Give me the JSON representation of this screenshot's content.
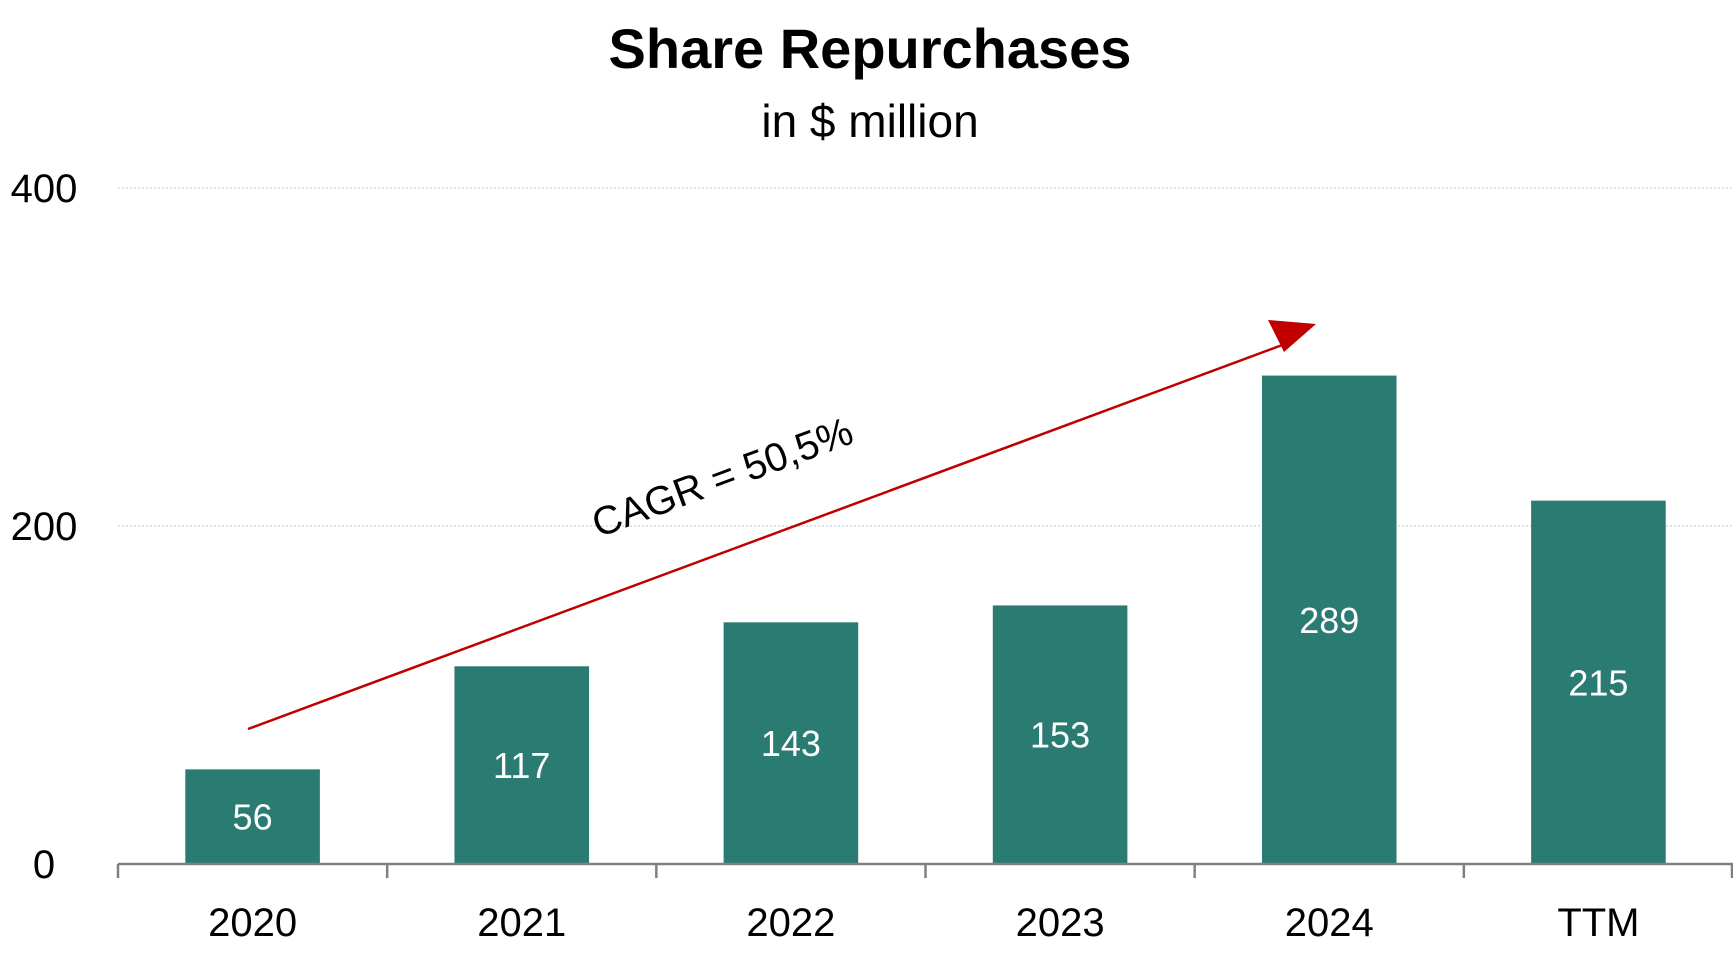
{
  "chart_data": {
    "type": "bar",
    "title": "Share Repurchases",
    "subtitle": "in $ million",
    "categories": [
      "2020",
      "2021",
      "2022",
      "2023",
      "2024",
      "TTM"
    ],
    "values": [
      56,
      117,
      143,
      153,
      289,
      215
    ],
    "data_labels": [
      "56",
      "117",
      "143",
      "153",
      "289",
      "215"
    ],
    "ylim": [
      0,
      400
    ],
    "yticks": [
      0,
      200,
      400
    ],
    "ytick_labels": [
      "0",
      "200",
      "400"
    ],
    "grid": true,
    "legend": "none",
    "bar_color": "#2a7b72",
    "label_color": "#ffffff",
    "annotation": {
      "text": "CAGR = 50,5%",
      "arrow_color": "#c00000"
    }
  }
}
